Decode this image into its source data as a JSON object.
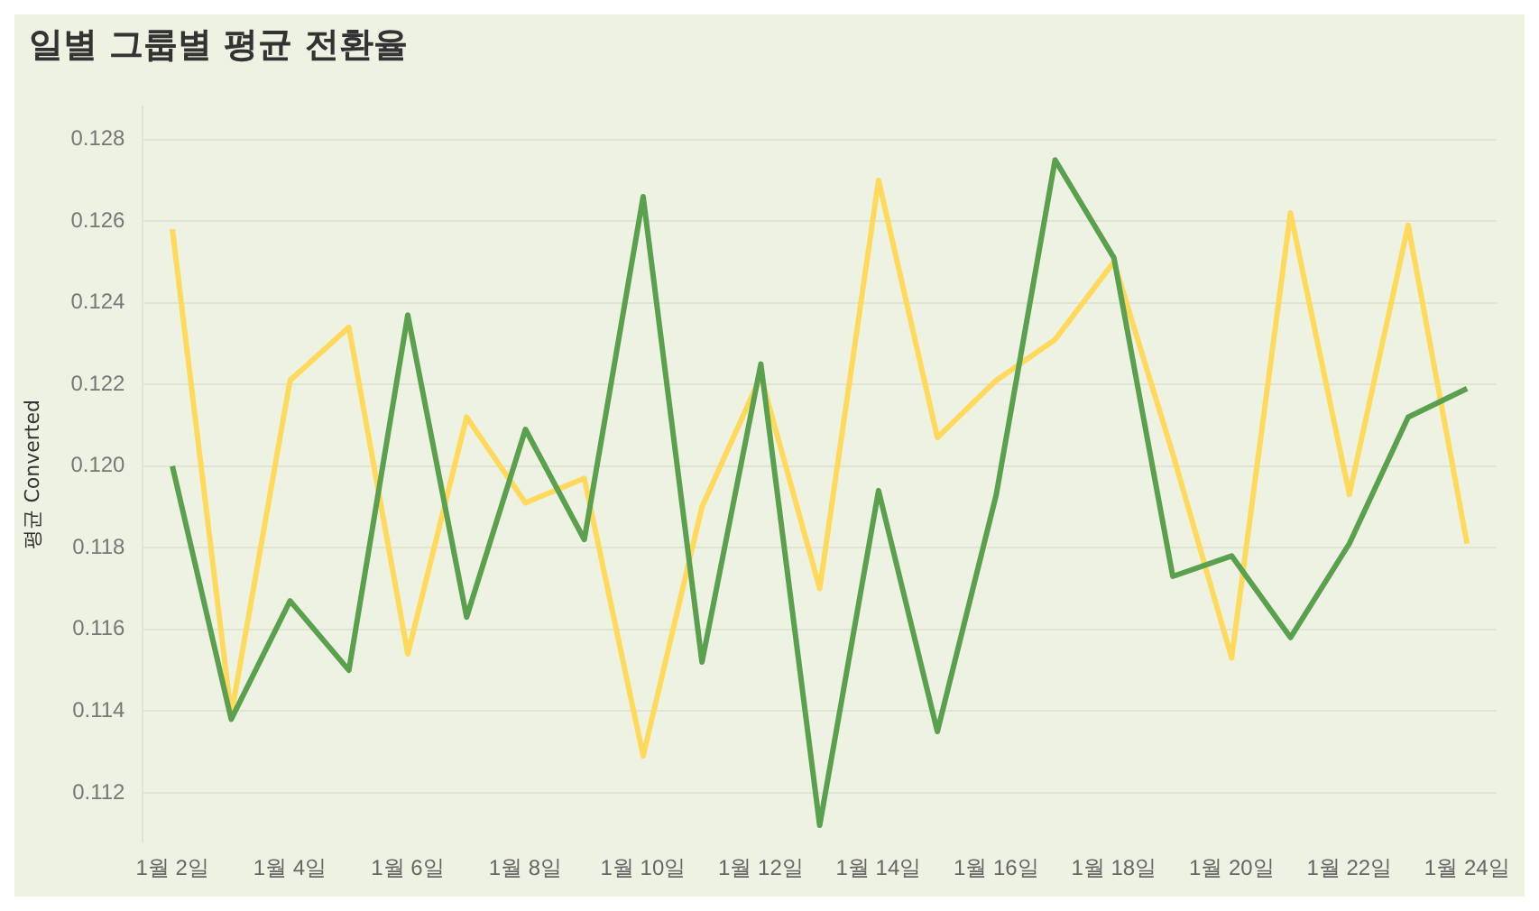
{
  "chart_data": {
    "type": "line",
    "title": "일별 그룹별 평균 전환율",
    "ylabel": "평균 Converted",
    "categories": [
      "1월 2일",
      null,
      "1월 4일",
      null,
      "1월 6일",
      null,
      "1월 8일",
      null,
      "1월 10일",
      null,
      "1월 12일",
      null,
      "1월 14일",
      null,
      "1월 16일",
      null,
      "1월 18일",
      null,
      "1월 20일",
      null,
      "1월 22일",
      null,
      "1월 24일"
    ],
    "series": [
      {
        "color": "#5aa04e",
        "values": [
          0.12,
          0.1138,
          0.1167,
          0.115,
          0.1237,
          0.1163,
          0.1209,
          0.1182,
          0.1266,
          0.1152,
          0.1225,
          0.1112,
          0.1194,
          0.1135,
          0.1193,
          0.1275,
          0.1251,
          0.1173,
          0.1178,
          0.1158,
          0.1181,
          0.1212,
          0.1219
        ]
      },
      {
        "color": "#ffd95c",
        "values": [
          0.1258,
          0.1139,
          0.1221,
          0.1234,
          0.1154,
          0.1212,
          0.1191,
          0.1197,
          0.1129,
          0.119,
          0.1222,
          0.117,
          0.127,
          0.1207,
          0.1221,
          0.1231,
          0.125,
          0.1203,
          0.1153,
          0.1262,
          0.1193,
          0.1259,
          0.1181
        ]
      }
    ],
    "ylim": [
      0.1108,
      0.1288
    ],
    "yticks": [
      {
        "value": 0.112,
        "label": "0.112"
      },
      {
        "value": 0.114,
        "label": "0.114"
      },
      {
        "value": 0.116,
        "label": "0.116"
      },
      {
        "value": 0.118,
        "label": "0.118"
      },
      {
        "value": 0.12,
        "label": "0.120"
      },
      {
        "value": 0.122,
        "label": "0.122"
      },
      {
        "value": 0.124,
        "label": "0.124"
      },
      {
        "value": 0.126,
        "label": "0.126"
      },
      {
        "value": 0.128,
        "label": "0.128"
      }
    ],
    "grid": "y",
    "legend": false,
    "marker": "none",
    "line_style": "solid"
  }
}
